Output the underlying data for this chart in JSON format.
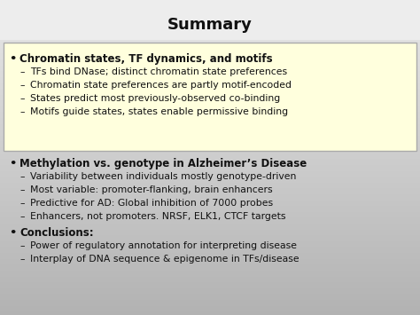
{
  "title": "Summary",
  "title_fontsize": 13,
  "highlight_bg": "#ffffdd",
  "bullet_fontsize": 8.5,
  "sub_fontsize": 7.8,
  "text_color": "#111111",
  "bullet1_bold": "Chromatin states, TF dynamics, and motifs",
  "bullet1_subs": [
    "TFs bind DNase; distinct chromatin state preferences",
    "Chromatin state preferences are partly motif-encoded",
    "States predict most previously-observed co-binding",
    "Motifs guide states, states enable permissive binding"
  ],
  "bullet2_bold": "Methylation vs. genotype in Alzheimer’s Disease",
  "bullet2_subs": [
    "Variability between individuals mostly genotype-driven",
    "Most variable: promoter-flanking, brain enhancers",
    "Predictive for AD: Global inhibition of 7000 probes",
    "Enhancers, not promoters. NRSF, ELK1, CTCF targets"
  ],
  "bullet3_bold": "Conclusions:",
  "bullet3_subs": [
    "Power of regulatory annotation for interpreting disease",
    "Interplay of DNA sequence & epigenome in TFs/disease"
  ],
  "bg_top": "#e8e8e8",
  "bg_bottom": "#b0b0b0",
  "title_area_bg": "#d8d8d8"
}
